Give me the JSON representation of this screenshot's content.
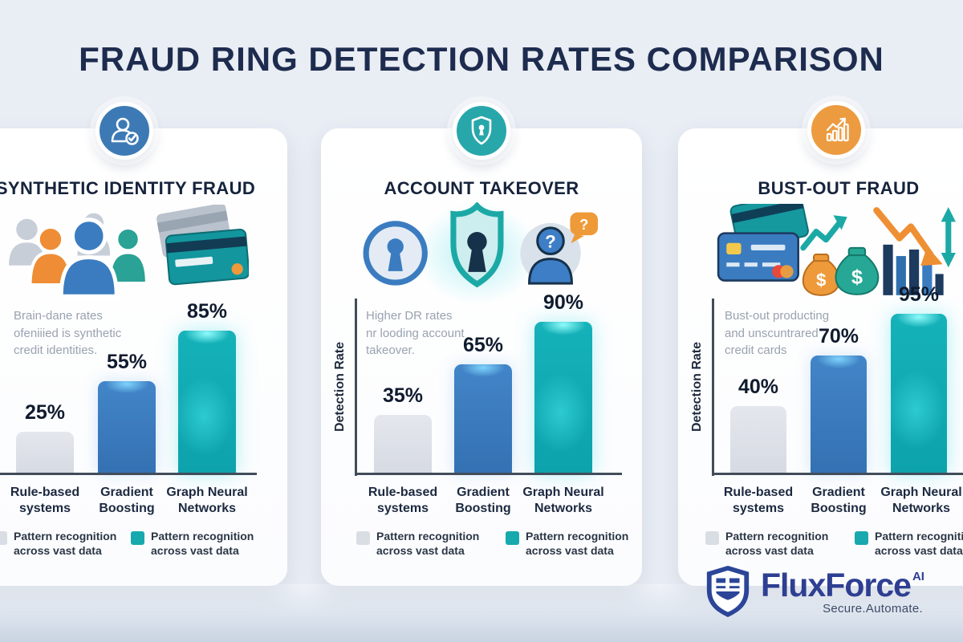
{
  "page": {
    "title": "FRAUD RING DETECTION RATES COMPARISON"
  },
  "categories": [
    [
      "Rule-based",
      "systems"
    ],
    [
      "Gradient",
      "Boosting"
    ],
    [
      "Graph Neural",
      "Networks"
    ]
  ],
  "legend": {
    "items": [
      {
        "swatch_color": "#d9dee5",
        "line1": "Pattern recognition",
        "line2": "across vast data"
      },
      {
        "swatch_color": "#17a9ae",
        "line1": "Pattern recognition",
        "line2": "across vast data"
      }
    ]
  },
  "panels": [
    {
      "title": "SYNTHETIC IDENTITY FRAUD",
      "icon": "person-check-icon",
      "icon_color": "#3d7ab5",
      "note_lines": [
        "Brain-dane rates",
        "ofeniiied is synthetic",
        "credit identities."
      ],
      "ylabel": "",
      "values": [
        25,
        55,
        85
      ],
      "value_labels": [
        "25%",
        "55%",
        "85%"
      ]
    },
    {
      "title": "ACCOUNT TAKEOVER",
      "icon": "shield-keyhole-icon",
      "icon_color": "#28a7ab",
      "note_lines": [
        "Higher DR rates",
        "nr looding account",
        "takeover."
      ],
      "ylabel": "Detection Rate",
      "values": [
        35,
        65,
        90
      ],
      "value_labels": [
        "35%",
        "65%",
        "90%"
      ]
    },
    {
      "title": "BUST-OUT FRAUD",
      "icon": "bar-chart-rise-icon",
      "icon_color": "#ec9b40",
      "note_lines": [
        "Bust-out producting",
        "and unscuntrared",
        "credit cards"
      ],
      "ylabel": "Detection Rate",
      "values": [
        40,
        70,
        95
      ],
      "value_labels": [
        "40%",
        "70%",
        "95%"
      ]
    }
  ],
  "chart_data": [
    {
      "type": "bar",
      "title": "SYNTHETIC IDENTITY FRAUD",
      "categories": [
        "Rule-based systems",
        "Gradient Boosting",
        "Graph Neural Networks"
      ],
      "values": [
        25,
        55,
        85
      ],
      "value_labels": [
        "25%",
        "55%",
        "85%"
      ],
      "xlabel": "",
      "ylabel": "",
      "ylim": [
        0,
        100
      ],
      "grid": false,
      "annotation": "Brain-dane rates ofeniiied is synthetic credit identities.",
      "bar_colors": [
        "#d9dee5",
        "#3a7ec4",
        "#13b3ba"
      ],
      "legend": [
        "Pattern recognition across vast data",
        "Pattern recognition across vast data"
      ],
      "legend_position": "bottom"
    },
    {
      "type": "bar",
      "title": "ACCOUNT TAKEOVER",
      "categories": [
        "Rule-based systems",
        "Gradient Boosting",
        "Graph Neural Networks"
      ],
      "values": [
        35,
        65,
        90
      ],
      "value_labels": [
        "35%",
        "65%",
        "90%"
      ],
      "xlabel": "",
      "ylabel": "Detection Rate",
      "ylim": [
        0,
        100
      ],
      "grid": false,
      "annotation": "Higher DR rates nr looding account takeover.",
      "bar_colors": [
        "#d9dee5",
        "#3a7ec4",
        "#13b3ba"
      ],
      "legend": [
        "Pattern recognition across vast data",
        "Pattern recognition across vast data"
      ],
      "legend_position": "bottom"
    },
    {
      "type": "bar",
      "title": "BUST-OUT FRAUD",
      "categories": [
        "Rule-based systems",
        "Gradient Boosting",
        "Graph Neural Networks"
      ],
      "values": [
        40,
        70,
        95
      ],
      "value_labels": [
        "40%",
        "70%",
        "95%"
      ],
      "xlabel": "",
      "ylabel": "Detection Rate",
      "ylim": [
        0,
        100
      ],
      "grid": false,
      "annotation": "Bust-out producting and unscuntrared credit cards",
      "bar_colors": [
        "#d9dee5",
        "#3a7ec4",
        "#13b3ba"
      ],
      "legend": [
        "Pattern recognition across vast data",
        "Pattern recognition across vast data"
      ],
      "legend_position": "bottom"
    }
  ],
  "colors": {
    "background": "#e9edf4",
    "card": "#ffffff",
    "title_navy": "#1d2c4e",
    "bar_gray": "#d9dee5",
    "bar_blue": "#3a7ec4",
    "bar_teal": "#13b3ba",
    "icon_blue": "#3d7ab5",
    "icon_teal": "#28a7ab",
    "icon_orange": "#ec9b40",
    "logo_navy": "#2e3f92"
  },
  "logo": {
    "brand": "FluxForce",
    "superscript": "AI",
    "tagline": "Secure.Automate."
  }
}
